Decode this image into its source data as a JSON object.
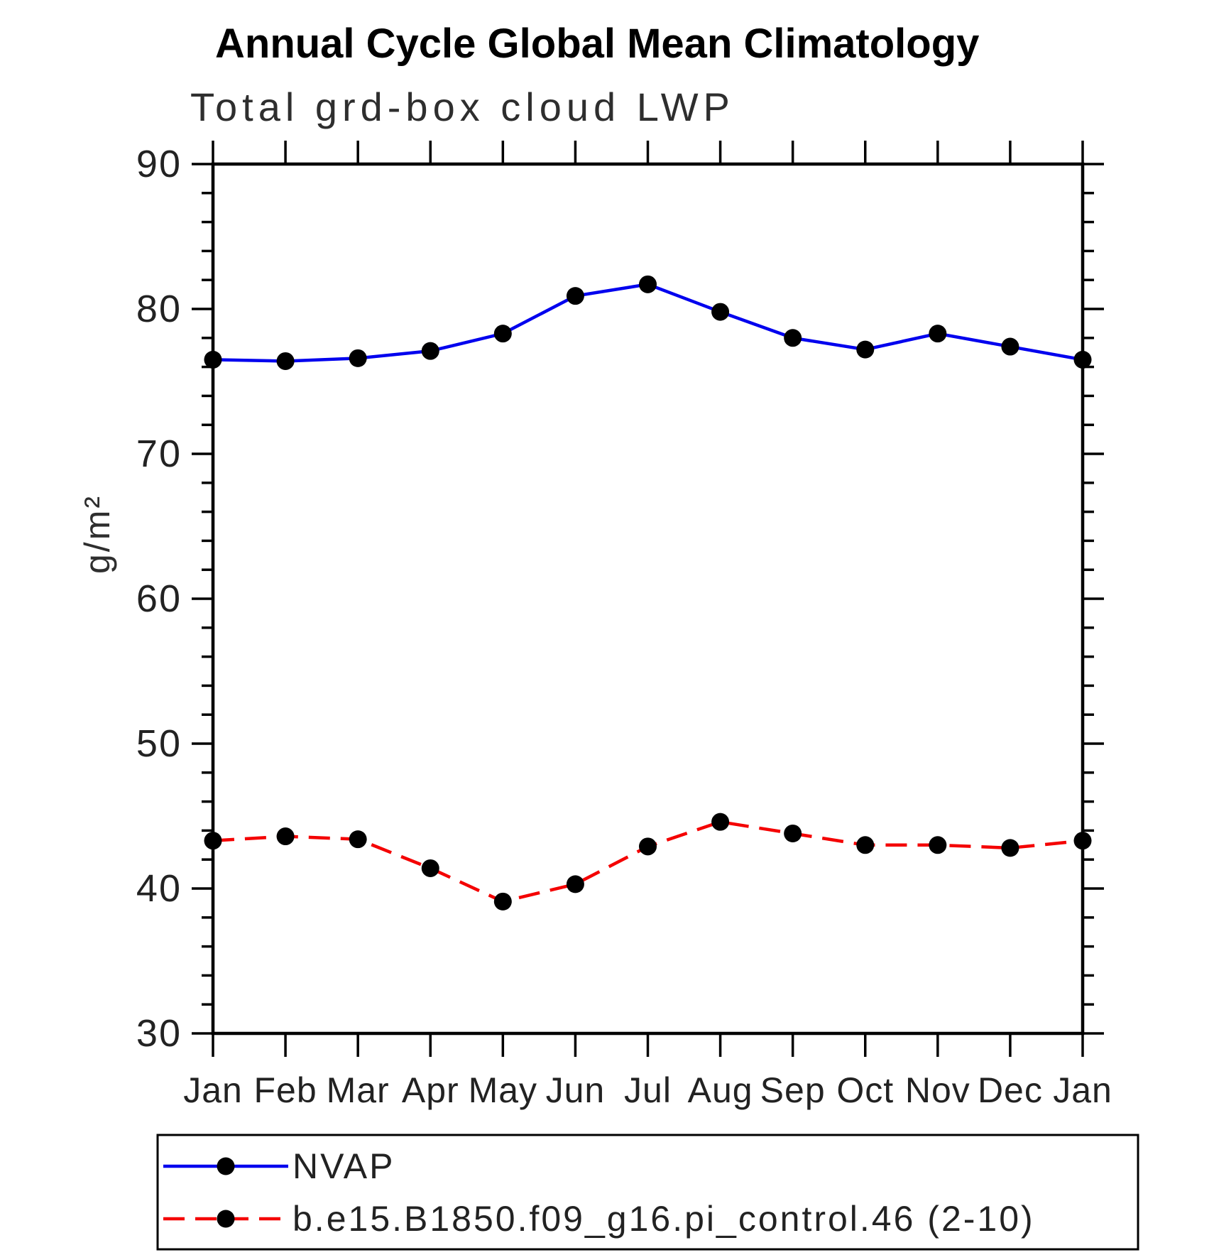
{
  "chart_data": {
    "type": "line",
    "title": "Annual Cycle Global Mean Climatology",
    "subtitle": "Total grd-box cloud LWP",
    "ylabel": "g/m²",
    "xlabel": "",
    "x_categories": [
      "Jan",
      "Feb",
      "Mar",
      "Apr",
      "May",
      "Jun",
      "Jul",
      "Aug",
      "Sep",
      "Oct",
      "Nov",
      "Dec",
      "Jan"
    ],
    "ylim": [
      30,
      90
    ],
    "ytick_major_step": 10,
    "ytick_minor_step": 2,
    "ytick_labels": [
      "90",
      "80",
      "70",
      "60",
      "50",
      "40",
      "30"
    ],
    "grid": false,
    "legend_position": "bottom-left-box",
    "frame_color": "#000000",
    "marker": "filled-circle",
    "marker_color": "#000000",
    "series": [
      {
        "name": "NVAP",
        "color": "#0000ee",
        "style": "solid",
        "values": [
          76.5,
          76.4,
          76.6,
          77.1,
          78.3,
          80.9,
          81.7,
          79.8,
          78.0,
          77.2,
          78.3,
          77.4,
          76.5
        ]
      },
      {
        "name": "b.e15.B1850.f09_g16.pi_control.46 (2-10)",
        "color": "#f40000",
        "style": "dashed",
        "values": [
          43.3,
          43.6,
          43.4,
          41.4,
          39.1,
          40.3,
          42.9,
          44.6,
          43.8,
          43.0,
          43.0,
          42.8,
          43.3
        ]
      }
    ]
  }
}
